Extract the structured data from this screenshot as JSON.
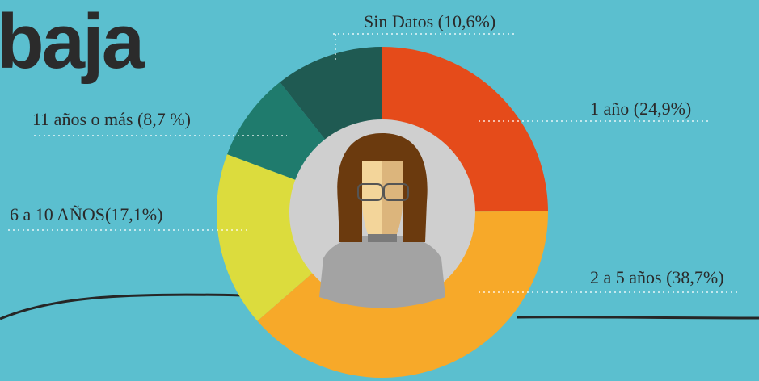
{
  "chart_data": {
    "type": "donut",
    "title": "baja",
    "values": [
      24.9,
      38.7,
      17.1,
      8.7,
      10.6
    ],
    "value_labels": [
      "1 año (24,9%)",
      "2 a 5 años (38,7%)",
      "6 a 10 AÑOS(17,1%)",
      "11 años o más (8,7 %)",
      "Sin Datos (10,6%)"
    ],
    "colors": [
      "#e54b1a",
      "#f7a929",
      "#dcdc3d",
      "#1f7b6d",
      "#1f5a52"
    ]
  }
}
